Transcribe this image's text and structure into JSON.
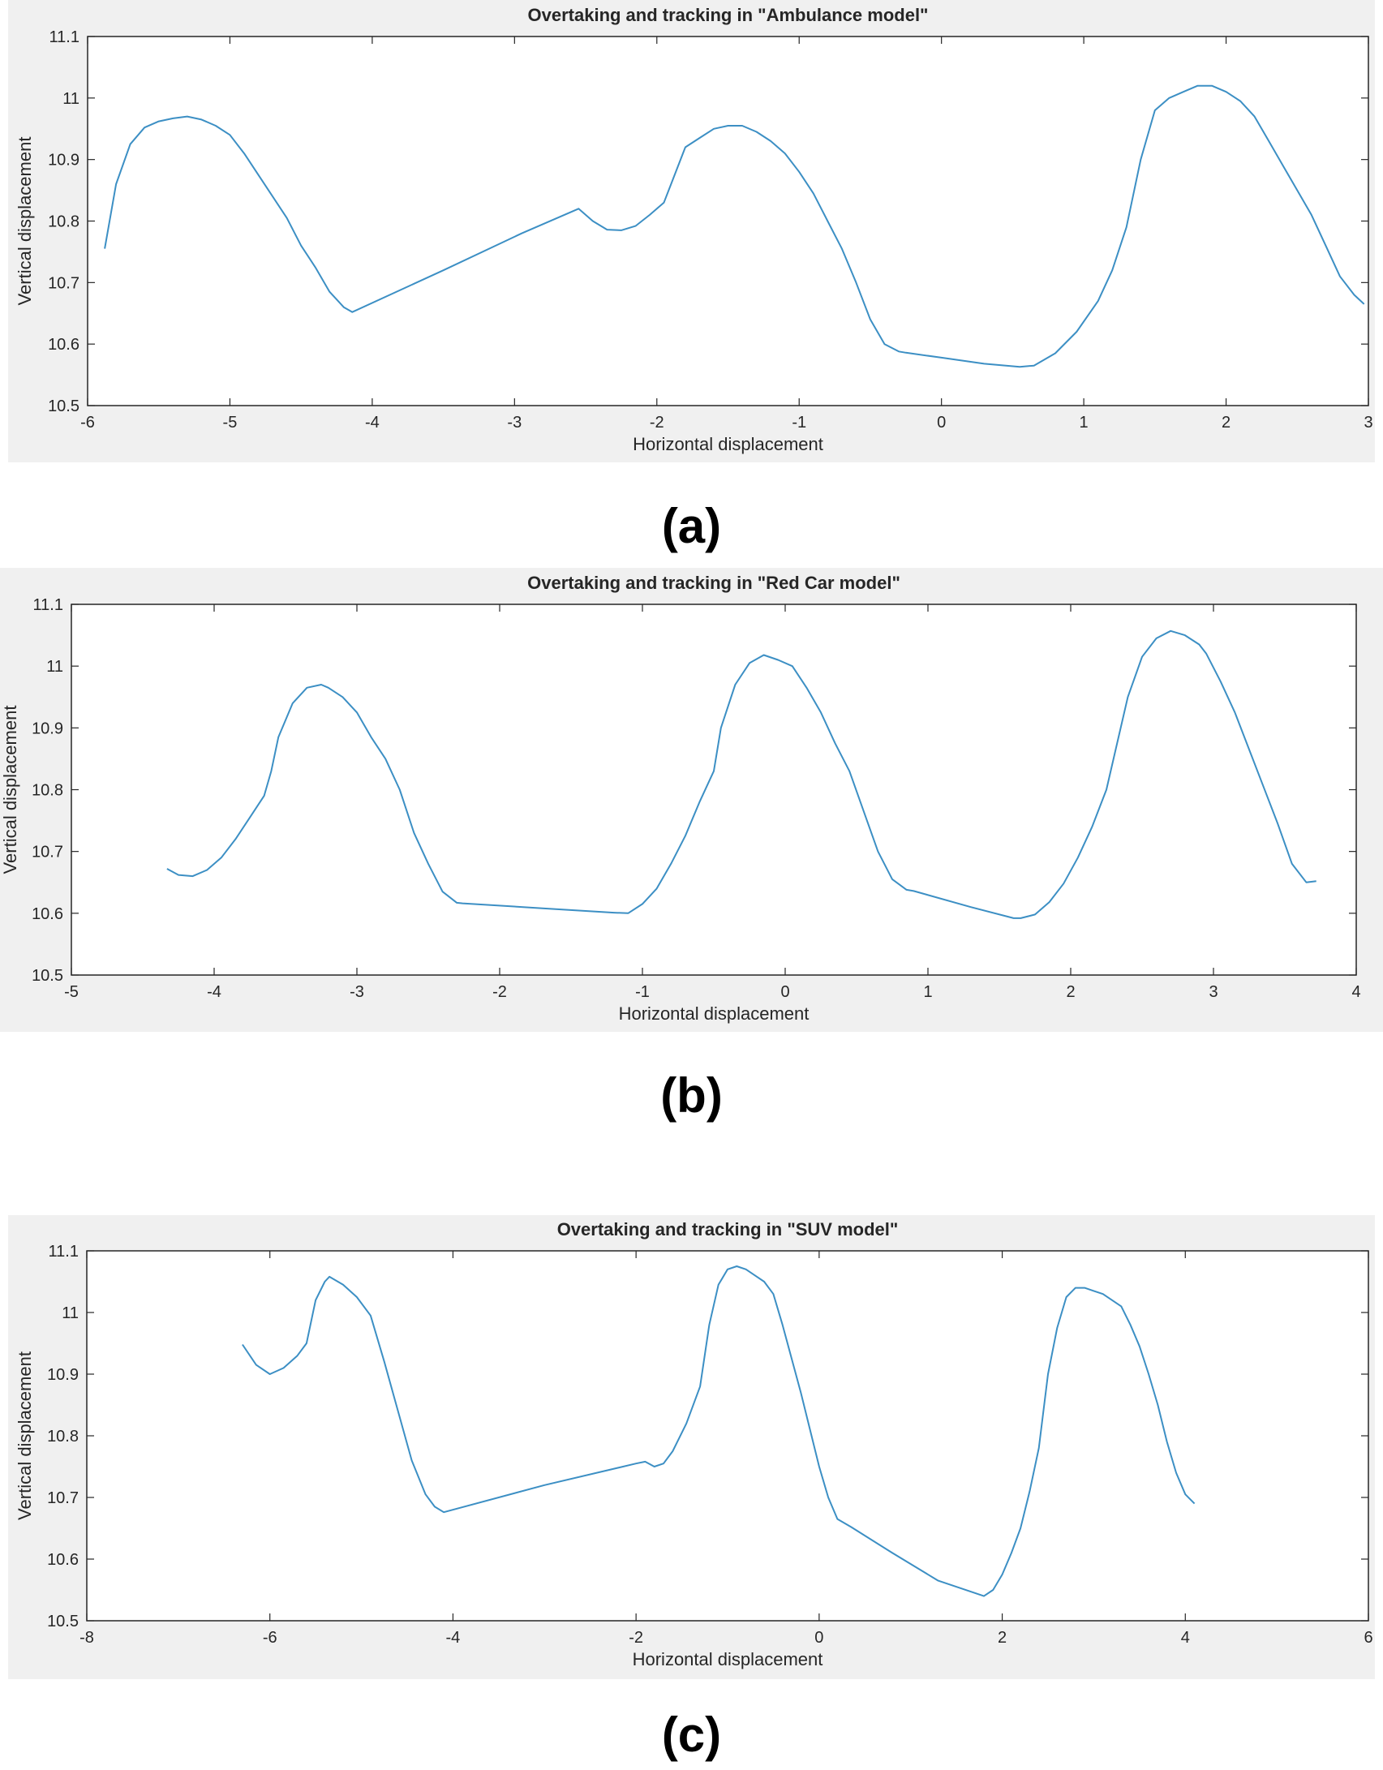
{
  "colors": {
    "figure_background": "#f0f0f0",
    "axes_background": "#ffffff",
    "line": "#3c8fc4",
    "axis": "#262626"
  },
  "panels": [
    {
      "label": "(a)"
    },
    {
      "label": "(b)"
    },
    {
      "label": "(c)"
    }
  ],
  "chart_data": [
    {
      "type": "line",
      "title": "Overtaking and tracking in \"Ambulance model\"",
      "xlabel": "Horizontal displacement",
      "ylabel": "Vertical displacement",
      "xlim": [
        -6,
        3
      ],
      "ylim": [
        10.5,
        11.1
      ],
      "xticks": [
        "-6",
        "-5",
        "-4",
        "-3",
        "-2",
        "-1",
        "0",
        "1",
        "2",
        "3"
      ],
      "yticks": [
        "10.5",
        "10.6",
        "10.7",
        "10.8",
        "10.9",
        "11",
        "11.1"
      ],
      "grid": false,
      "series": [
        {
          "x": [
            -5.88,
            -5.8,
            -5.7,
            -5.6,
            -5.5,
            -5.4,
            -5.3,
            -5.2,
            -5.1,
            -5.0,
            -4.9,
            -4.8,
            -4.7,
            -4.6,
            -4.5,
            -4.4,
            -4.3,
            -4.2,
            -4.14,
            -3.5,
            -2.95,
            -2.55,
            -2.45,
            -2.35,
            -2.25,
            -2.15,
            -2.05,
            -1.95,
            -1.9,
            -1.8,
            -1.7,
            -1.6,
            -1.5,
            -1.4,
            -1.3,
            -1.2,
            -1.1,
            -1.0,
            -0.9,
            -0.8,
            -0.7,
            -0.6,
            -0.5,
            -0.4,
            -0.3,
            -0.25,
            0.0,
            0.3,
            0.55,
            0.65,
            0.8,
            0.95,
            1.1,
            1.2,
            1.3,
            1.4,
            1.5,
            1.6,
            1.7,
            1.8,
            1.9,
            2.0,
            2.1,
            2.2,
            2.3,
            2.4,
            2.5,
            2.6,
            2.7,
            2.8,
            2.9,
            2.97
          ],
          "y": [
            10.755,
            10.86,
            10.925,
            10.952,
            10.962,
            10.967,
            10.97,
            10.965,
            10.955,
            10.94,
            10.91,
            10.875,
            10.84,
            10.805,
            10.76,
            10.725,
            10.685,
            10.66,
            10.652,
            10.72,
            10.78,
            10.82,
            10.8,
            10.786,
            10.785,
            10.792,
            10.81,
            10.83,
            10.86,
            10.92,
            10.935,
            10.95,
            10.955,
            10.955,
            10.945,
            10.93,
            10.91,
            10.88,
            10.845,
            10.8,
            10.755,
            10.7,
            10.64,
            10.6,
            10.588,
            10.586,
            10.578,
            10.568,
            10.563,
            10.565,
            10.585,
            10.62,
            10.67,
            10.72,
            10.79,
            10.9,
            10.98,
            11.0,
            11.01,
            11.02,
            11.02,
            11.01,
            10.995,
            10.97,
            10.93,
            10.89,
            10.85,
            10.81,
            10.76,
            10.71,
            10.68,
            10.665
          ]
        }
      ]
    },
    {
      "type": "line",
      "title": "Overtaking and tracking in \"Red Car model\"",
      "xlabel": "Horizontal displacement",
      "ylabel": "Vertical displacement",
      "xlim": [
        -5,
        4
      ],
      "ylim": [
        10.5,
        11.1
      ],
      "xticks": [
        "-5",
        "-4",
        "-3",
        "-2",
        "-1",
        "0",
        "1",
        "2",
        "3",
        "4"
      ],
      "yticks": [
        "10.5",
        "10.6",
        "10.7",
        "10.8",
        "10.9",
        "11",
        "11.1"
      ],
      "grid": false,
      "series": [
        {
          "x": [
            -4.33,
            -4.25,
            -4.15,
            -4.05,
            -3.95,
            -3.85,
            -3.75,
            -3.65,
            -3.6,
            -3.55,
            -3.45,
            -3.35,
            -3.25,
            -3.2,
            -3.1,
            -3.0,
            -2.9,
            -2.8,
            -2.7,
            -2.6,
            -2.5,
            -2.4,
            -2.3,
            -2.26,
            -1.7,
            -1.2,
            -1.1,
            -1.0,
            -0.9,
            -0.8,
            -0.7,
            -0.6,
            -0.5,
            -0.45,
            -0.35,
            -0.25,
            -0.15,
            -0.05,
            0.05,
            0.15,
            0.25,
            0.35,
            0.45,
            0.55,
            0.65,
            0.75,
            0.85,
            0.9,
            1.3,
            1.6,
            1.65,
            1.75,
            1.85,
            1.95,
            2.05,
            2.15,
            2.25,
            2.3,
            2.4,
            2.5,
            2.6,
            2.7,
            2.8,
            2.9,
            2.95,
            3.05,
            3.15,
            3.25,
            3.35,
            3.45,
            3.55,
            3.65,
            3.72
          ],
          "y": [
            10.672,
            10.662,
            10.66,
            10.67,
            10.69,
            10.72,
            10.755,
            10.79,
            10.83,
            10.885,
            10.94,
            10.965,
            10.97,
            10.965,
            10.95,
            10.925,
            10.885,
            10.85,
            10.8,
            10.73,
            10.68,
            10.635,
            10.617,
            10.616,
            10.608,
            10.601,
            10.6,
            10.615,
            10.64,
            10.68,
            10.725,
            10.78,
            10.83,
            10.9,
            10.97,
            11.005,
            11.018,
            11.01,
            11.0,
            10.965,
            10.925,
            10.875,
            10.83,
            10.765,
            10.7,
            10.655,
            10.638,
            10.636,
            10.61,
            10.592,
            10.592,
            10.598,
            10.618,
            10.648,
            10.69,
            10.74,
            10.8,
            10.85,
            10.95,
            11.015,
            11.045,
            11.057,
            11.05,
            11.035,
            11.02,
            10.975,
            10.925,
            10.865,
            10.805,
            10.745,
            10.68,
            10.65,
            10.652
          ]
        }
      ]
    },
    {
      "type": "line",
      "title": "Overtaking and tracking in \"SUV model\"",
      "xlabel": "Horizontal displacement",
      "ylabel": "Vertical displacement",
      "xlim": [
        -8,
        6
      ],
      "ylim": [
        10.5,
        11.1
      ],
      "xticks": [
        "-8",
        "-6",
        "-4",
        "-2",
        "0",
        "2",
        "4",
        "6"
      ],
      "yticks": [
        "10.5",
        "10.6",
        "10.7",
        "10.8",
        "10.9",
        "11",
        "11.1"
      ],
      "grid": false,
      "series": [
        {
          "x": [
            -6.3,
            -6.15,
            -6.0,
            -5.85,
            -5.7,
            -5.6,
            -5.5,
            -5.4,
            -5.35,
            -5.2,
            -5.05,
            -4.9,
            -4.75,
            -4.6,
            -4.45,
            -4.3,
            -4.2,
            -4.1,
            -3.0,
            -2.0,
            -1.9,
            -1.8,
            -1.7,
            -1.6,
            -1.45,
            -1.3,
            -1.2,
            -1.1,
            -1.0,
            -0.9,
            -0.8,
            -0.7,
            -0.6,
            -0.5,
            -0.4,
            -0.3,
            -0.2,
            -0.1,
            0.0,
            0.1,
            0.2,
            0.35,
            0.8,
            1.3,
            1.8,
            1.9,
            2.0,
            2.1,
            2.2,
            2.3,
            2.4,
            2.5,
            2.6,
            2.7,
            2.8,
            2.9,
            3.0,
            3.1,
            3.2,
            3.3,
            3.4,
            3.5,
            3.6,
            3.7,
            3.8,
            3.9,
            4.0,
            4.1
          ],
          "y": [
            10.948,
            10.915,
            10.9,
            10.91,
            10.93,
            10.95,
            11.02,
            11.05,
            11.058,
            11.045,
            11.025,
            10.995,
            10.92,
            10.84,
            10.76,
            10.705,
            10.685,
            10.676,
            10.72,
            10.755,
            10.758,
            10.75,
            10.755,
            10.775,
            10.82,
            10.88,
            10.98,
            11.045,
            11.07,
            11.075,
            11.07,
            11.06,
            11.05,
            11.03,
            10.98,
            10.925,
            10.87,
            10.81,
            10.75,
            10.7,
            10.665,
            10.652,
            10.61,
            10.565,
            10.54,
            10.55,
            10.575,
            10.61,
            10.65,
            10.71,
            10.78,
            10.9,
            10.975,
            11.025,
            11.04,
            11.04,
            11.035,
            11.03,
            11.02,
            11.01,
            10.98,
            10.945,
            10.9,
            10.85,
            10.79,
            10.74,
            10.705,
            10.69
          ]
        }
      ]
    }
  ]
}
